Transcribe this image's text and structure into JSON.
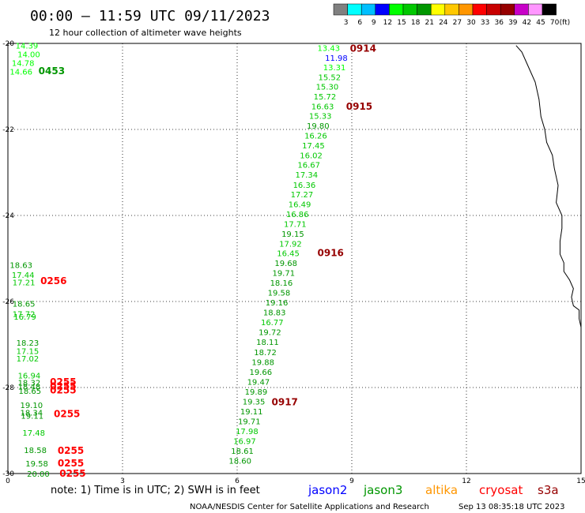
{
  "header": {
    "title": "00:00 — 11:59 UTC 09/11/2023",
    "subtitle": "12 hour collection of altimeter wave heights"
  },
  "colorbar": {
    "labels": [
      "3",
      "6",
      "9",
      "12",
      "15",
      "18",
      "21",
      "24",
      "27",
      "30",
      "33",
      "36",
      "39",
      "42",
      "45",
      "70"
    ],
    "unit": "(ft)",
    "colors": [
      "#808080",
      "#00ffff",
      "#00bfff",
      "#0000ff",
      "#00ff00",
      "#00c800",
      "#009600",
      "#ffff00",
      "#ffc800",
      "#ff9600",
      "#ff0000",
      "#c80000",
      "#960000",
      "#c800c8",
      "#ff96ff",
      "#000000"
    ]
  },
  "footer": {
    "note": "note: 1) Time is in UTC; 2) SWH is in feet",
    "satellites": [
      {
        "name": "jason2",
        "color": "#0000ff"
      },
      {
        "name": "jason3",
        "color": "#009600"
      },
      {
        "name": "altika",
        "color": "#ff9600"
      },
      {
        "name": "cryosat",
        "color": "#ff0000"
      },
      {
        "name": "s3a",
        "color": "#960000"
      }
    ],
    "credit": "NOAA/NESDIS Center for Satellite Applications and Research",
    "timestamp": "Sep 13 08:35:18 UTC 2023"
  },
  "chart_data": {
    "type": "scatter",
    "x_ticks": [
      "0",
      "3",
      "6",
      "9",
      "12",
      "15"
    ],
    "y_ticks": [
      "-20",
      "-22",
      "-24",
      "-26",
      "-28",
      "-30"
    ],
    "xlim": [
      0,
      15
    ],
    "ylim": [
      -30,
      -20
    ],
    "grid": true,
    "coastline_lon": [
      13.3,
      13.45,
      13.6,
      13.8,
      13.9,
      13.95,
      14.05,
      14.1,
      14.25,
      14.3,
      14.4,
      14.35,
      14.5,
      14.5,
      14.45,
      14.45,
      14.55,
      14.55,
      14.7,
      14.8,
      14.75,
      14.8,
      14.95,
      14.95,
      15.0
    ],
    "coastline_lat": [
      -20.05,
      -20.2,
      -20.5,
      -20.9,
      -21.3,
      -21.7,
      -22.0,
      -22.3,
      -22.6,
      -22.9,
      -23.3,
      -23.7,
      -24.0,
      -24.3,
      -24.6,
      -24.9,
      -25.1,
      -25.3,
      -25.5,
      -25.7,
      -25.9,
      -26.1,
      -26.2,
      -26.4,
      -26.6
    ],
    "swath_points": [
      {
        "label": "13.43",
        "lon": 8.1,
        "lat": -20.1,
        "color": "#00ff00"
      },
      {
        "label": "11.98",
        "lon": 8.3,
        "lat": -20.33,
        "color": "#0000ff"
      },
      {
        "label": "13.31",
        "lon": 8.25,
        "lat": -20.55,
        "color": "#00ff00"
      },
      {
        "label": "15.52",
        "lon": 8.12,
        "lat": -20.78,
        "color": "#00c800"
      },
      {
        "label": "15.30",
        "lon": 8.06,
        "lat": -21.0,
        "color": "#00c800"
      },
      {
        "label": "15.72",
        "lon": 8.0,
        "lat": -21.23,
        "color": "#00c800"
      },
      {
        "label": "16.63",
        "lon": 7.94,
        "lat": -21.46,
        "color": "#00c800"
      },
      {
        "label": "15.33",
        "lon": 7.88,
        "lat": -21.68,
        "color": "#00c800"
      },
      {
        "label": "19.80",
        "lon": 7.82,
        "lat": -21.91,
        "color": "#009600"
      },
      {
        "label": "16.26",
        "lon": 7.76,
        "lat": -22.14,
        "color": "#00c800"
      },
      {
        "label": "17.45",
        "lon": 7.7,
        "lat": -22.37,
        "color": "#00c800"
      },
      {
        "label": "16.02",
        "lon": 7.64,
        "lat": -22.6,
        "color": "#00c800"
      },
      {
        "label": "16.67",
        "lon": 7.58,
        "lat": -22.82,
        "color": "#00c800"
      },
      {
        "label": "17.34",
        "lon": 7.52,
        "lat": -23.05,
        "color": "#00c800"
      },
      {
        "label": "16.36",
        "lon": 7.46,
        "lat": -23.28,
        "color": "#00c800"
      },
      {
        "label": "17.27",
        "lon": 7.4,
        "lat": -23.5,
        "color": "#00c800"
      },
      {
        "label": "16.49",
        "lon": 7.34,
        "lat": -23.73,
        "color": "#00c800"
      },
      {
        "label": "16.86",
        "lon": 7.28,
        "lat": -23.96,
        "color": "#00c800"
      },
      {
        "label": "17.71",
        "lon": 7.22,
        "lat": -24.19,
        "color": "#00c800"
      },
      {
        "label": "19.15",
        "lon": 7.16,
        "lat": -24.42,
        "color": "#009600"
      },
      {
        "label": "17.92",
        "lon": 7.1,
        "lat": -24.65,
        "color": "#00c800"
      },
      {
        "label": "16.45",
        "lon": 7.04,
        "lat": -24.87,
        "color": "#00c800"
      },
      {
        "label": "19.68",
        "lon": 6.98,
        "lat": -25.1,
        "color": "#009600"
      },
      {
        "label": "19.71",
        "lon": 6.92,
        "lat": -25.33,
        "color": "#009600"
      },
      {
        "label": "18.16",
        "lon": 6.86,
        "lat": -25.56,
        "color": "#009600"
      },
      {
        "label": "19.58",
        "lon": 6.8,
        "lat": -25.79,
        "color": "#009600"
      },
      {
        "label": "19.16",
        "lon": 6.74,
        "lat": -26.02,
        "color": "#009600"
      },
      {
        "label": "18.83",
        "lon": 6.68,
        "lat": -26.25,
        "color": "#009600"
      },
      {
        "label": "16.77",
        "lon": 6.62,
        "lat": -26.48,
        "color": "#00c800"
      },
      {
        "label": "19.72",
        "lon": 6.56,
        "lat": -26.71,
        "color": "#009600"
      },
      {
        "label": "18.11",
        "lon": 6.5,
        "lat": -26.94,
        "color": "#009600"
      },
      {
        "label": "18.72",
        "lon": 6.44,
        "lat": -27.17,
        "color": "#009600"
      },
      {
        "label": "19.88",
        "lon": 6.38,
        "lat": -27.4,
        "color": "#009600"
      },
      {
        "label": "19.66",
        "lon": 6.32,
        "lat": -27.63,
        "color": "#009600"
      },
      {
        "label": "19.47",
        "lon": 6.26,
        "lat": -27.86,
        "color": "#009600"
      },
      {
        "label": "19.89",
        "lon": 6.2,
        "lat": -28.09,
        "color": "#009600"
      },
      {
        "label": "19.35",
        "lon": 6.14,
        "lat": -28.32,
        "color": "#009600"
      },
      {
        "label": "19.11",
        "lon": 6.08,
        "lat": -28.55,
        "color": "#009600"
      },
      {
        "label": "19.71",
        "lon": 6.02,
        "lat": -28.78,
        "color": "#009600"
      },
      {
        "label": "17.98",
        "lon": 5.96,
        "lat": -29.01,
        "color": "#00c800"
      },
      {
        "label": "16.97",
        "lon": 5.9,
        "lat": -29.24,
        "color": "#00c800"
      },
      {
        "label": "18.61",
        "lon": 5.84,
        "lat": -29.47,
        "color": "#009600"
      },
      {
        "label": "18.60",
        "lon": 5.78,
        "lat": -29.7,
        "color": "#009600"
      },
      {
        "label": "14.39",
        "lon": 0.2,
        "lat": -20.05,
        "color": "#00ff00"
      },
      {
        "label": "14.00",
        "lon": 0.25,
        "lat": -20.25,
        "color": "#00ff00"
      },
      {
        "label": "14.78",
        "lon": 0.1,
        "lat": -20.45,
        "color": "#00ff00"
      },
      {
        "label": "14.66",
        "lon": 0.05,
        "lat": -20.65,
        "color": "#00ff00"
      },
      {
        "label": "18.63",
        "lon": 0.05,
        "lat": -25.15,
        "color": "#009600"
      },
      {
        "label": "17.44",
        "lon": 0.1,
        "lat": -25.38,
        "color": "#00c800"
      },
      {
        "label": "17.21",
        "lon": 0.12,
        "lat": -25.55,
        "color": "#00c800"
      },
      {
        "label": "18.65",
        "lon": 0.12,
        "lat": -26.05,
        "color": "#009600"
      },
      {
        "label": "17.72",
        "lon": 0.12,
        "lat": -26.28,
        "color": "#00c800"
      },
      {
        "label": "16.79",
        "lon": 0.15,
        "lat": -26.35,
        "color": "#00c800"
      },
      {
        "label": "18.23",
        "lon": 0.22,
        "lat": -26.95,
        "color": "#009600"
      },
      {
        "label": "17.15",
        "lon": 0.22,
        "lat": -27.15,
        "color": "#00c800"
      },
      {
        "label": "17.02",
        "lon": 0.22,
        "lat": -27.32,
        "color": "#00c800"
      },
      {
        "label": "16.94",
        "lon": 0.26,
        "lat": -27.72,
        "color": "#00c800"
      },
      {
        "label": "18.32",
        "lon": 0.26,
        "lat": -27.88,
        "color": "#009600"
      },
      {
        "label": "18.48",
        "lon": 0.26,
        "lat": -27.97,
        "color": "#009600"
      },
      {
        "label": "18.65",
        "lon": 0.28,
        "lat": -28.07,
        "color": "#009600"
      },
      {
        "label": "19.10",
        "lon": 0.32,
        "lat": -28.4,
        "color": "#009600"
      },
      {
        "label": "18.34",
        "lon": 0.32,
        "lat": -28.58,
        "color": "#009600"
      },
      {
        "label": "19.11",
        "lon": 0.34,
        "lat": -28.65,
        "color": "#009600"
      },
      {
        "label": "17.48",
        "lon": 0.38,
        "lat": -29.05,
        "color": "#00c800"
      },
      {
        "label": "18.58",
        "lon": 0.42,
        "lat": -29.45,
        "color": "#009600"
      },
      {
        "label": "19.58",
        "lon": 0.46,
        "lat": -29.76,
        "color": "#009600"
      },
      {
        "label": "20.00",
        "lon": 0.5,
        "lat": -30.0,
        "color": "#009600"
      }
    ],
    "pass_times": [
      {
        "label": "0914",
        "lon": 8.95,
        "lat": -20.1,
        "color": "#960000"
      },
      {
        "label": "0915",
        "lon": 8.85,
        "lat": -21.45,
        "color": "#960000"
      },
      {
        "label": "0916",
        "lon": 8.1,
        "lat": -24.85,
        "color": "#960000"
      },
      {
        "label": "0917",
        "lon": 6.9,
        "lat": -28.32,
        "color": "#960000"
      },
      {
        "label": "0453",
        "lon": 0.8,
        "lat": -20.62,
        "color": "#009600"
      },
      {
        "label": "0256",
        "lon": 0.85,
        "lat": -25.5,
        "color": "#ff0000"
      },
      {
        "label": "0255",
        "lon": 1.1,
        "lat": -27.85,
        "color": "#ff0000"
      },
      {
        "label": "0255",
        "lon": 1.1,
        "lat": -27.95,
        "color": "#ff0000"
      },
      {
        "label": "0255",
        "lon": 1.1,
        "lat": -28.05,
        "color": "#ff0000"
      },
      {
        "label": "0255",
        "lon": 1.2,
        "lat": -28.6,
        "color": "#ff0000"
      },
      {
        "label": "0255",
        "lon": 1.3,
        "lat": -29.45,
        "color": "#ff0000"
      },
      {
        "label": "0255",
        "lon": 1.3,
        "lat": -29.74,
        "color": "#ff0000"
      },
      {
        "label": "0255",
        "lon": 1.35,
        "lat": -29.98,
        "color": "#ff0000"
      }
    ]
  }
}
